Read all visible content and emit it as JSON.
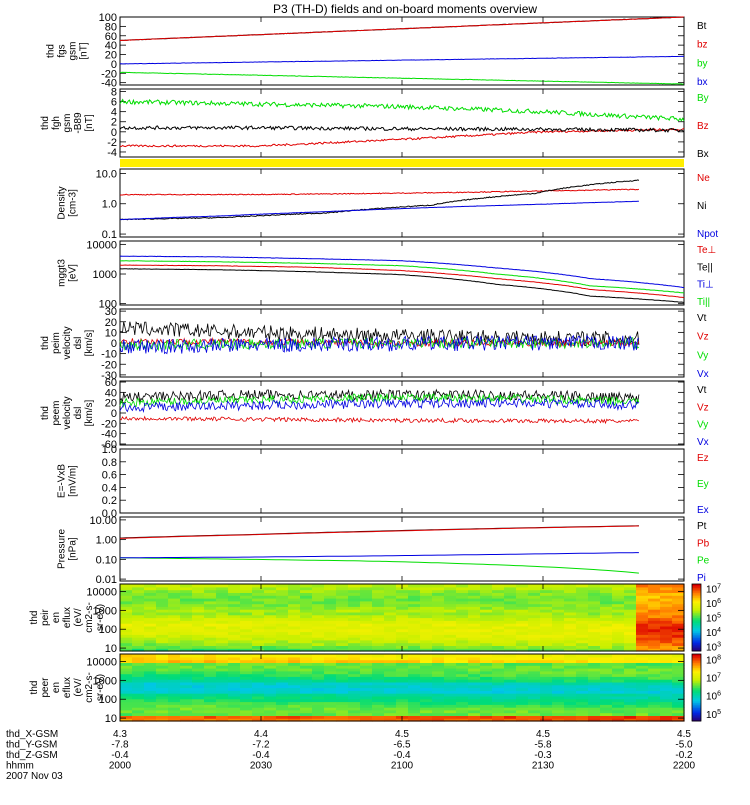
{
  "title": "P3 (TH-D) fields and on-board moments overview",
  "colors": {
    "black": "#000000",
    "red": "#e00000",
    "green": "#00dd00",
    "blue": "#0000e0",
    "yellow": "#ffee00"
  },
  "chart_data": [
    {
      "type": "line",
      "ylabel": [
        "thd",
        "fgs",
        "gsm",
        "[nT]"
      ],
      "yticks": [
        "100",
        "80",
        "60",
        "40",
        "20",
        "0",
        "-20",
        "-40"
      ],
      "yrange": [
        -45,
        100
      ],
      "ylog": false,
      "series": [
        {
          "name": "Bt",
          "color": "black",
          "values": [
            50,
            100
          ],
          "noise": 0.4
        },
        {
          "name": "bz",
          "color": "red",
          "values": [
            50,
            100
          ],
          "noise": 0.4
        },
        {
          "name": "by",
          "color": "green",
          "values": [
            -18,
            -43
          ],
          "noise": 0.4
        },
        {
          "name": "bx",
          "color": "blue",
          "values": [
            0,
            16
          ],
          "noise": 0.3
        }
      ]
    },
    {
      "type": "line",
      "ylabel": [
        "thd",
        "fgh",
        "gsm",
        "-B89",
        "[nT]"
      ],
      "yticks": [
        "8",
        "6",
        "4",
        "2",
        "0",
        "-2",
        "-4"
      ],
      "yrange": [
        -5,
        8.5
      ],
      "ylog": false,
      "series": [
        {
          "name": "By",
          "color": "green",
          "values": [
            6,
            5.5,
            5,
            4,
            2.5
          ],
          "noise": 0.45
        },
        {
          "name": "Bz",
          "color": "red",
          "values": [
            -2.8,
            -2.8,
            -1.5,
            0,
            0.5
          ],
          "noise": 0.2
        },
        {
          "name": "Bx",
          "color": "black",
          "values": [
            0.8,
            0.8,
            0.6,
            0.5,
            0.3
          ],
          "noise": 0.35
        }
      ]
    },
    {
      "type": "line",
      "ylabel": [
        "Density",
        "[cm-3]"
      ],
      "yticks": [
        "10.0",
        "1.0",
        "0.1"
      ],
      "ytickvals": [
        10,
        1,
        0.1
      ],
      "yrange": [
        0.08,
        14
      ],
      "ylog": true,
      "xend": 0.92,
      "series": [
        {
          "name": "Ne",
          "color": "red",
          "values": [
            2,
            2,
            2.1,
            2.3,
            2.6,
            3
          ],
          "noise": 0.03
        },
        {
          "name": "Ni",
          "color": "black",
          "values": [
            0.3,
            0.35,
            0.5,
            0.9,
            2.2,
            6
          ],
          "noise": 0.03
        },
        {
          "name": "Npot",
          "color": "blue",
          "values": [
            0.3,
            0.4,
            0.55,
            0.75,
            0.95,
            1.2
          ],
          "noise": 0.01
        }
      ]
    },
    {
      "type": "line",
      "ylabel": [
        "mggt3",
        "[eV]"
      ],
      "yticks": [
        "10000",
        "1000",
        "100"
      ],
      "ytickvals": [
        10000,
        1000,
        100
      ],
      "yrange": [
        90,
        13000
      ],
      "ylog": true,
      "series": [
        {
          "name": "Te⊥",
          "color": "red",
          "values": [
            2000,
            1900,
            1700,
            1300,
            700,
            300,
            160
          ],
          "noise": 0.01
        },
        {
          "name": "Te||",
          "color": "black",
          "values": [
            1500,
            1400,
            1200,
            950,
            450,
            180,
            110
          ],
          "noise": 0.01
        },
        {
          "name": "Ti⊥",
          "color": "blue",
          "values": [
            4000,
            3800,
            3300,
            2800,
            1600,
            700,
            350
          ],
          "noise": 0.01
        },
        {
          "name": "Ti||",
          "color": "green",
          "values": [
            2800,
            2600,
            2300,
            1900,
            1000,
            400,
            230
          ],
          "noise": 0.01
        }
      ]
    },
    {
      "type": "line",
      "ylabel": [
        "thd",
        "peim",
        "velocity",
        "dsl",
        "[km/s]"
      ],
      "yticks": [
        "30",
        "20",
        "10",
        "0",
        "-10",
        "-20",
        "-30"
      ],
      "yrange": [
        -32,
        32
      ],
      "ylog": false,
      "xend": 0.92,
      "series": [
        {
          "name": "Vt",
          "color": "black",
          "values": [
            14,
            10,
            7,
            5,
            4
          ],
          "noise": 7
        },
        {
          "name": "Vz",
          "color": "red",
          "values": [
            2,
            1,
            0,
            0,
            0
          ],
          "noise": 3
        },
        {
          "name": "Vy",
          "color": "green",
          "values": [
            -2,
            -1,
            0,
            0,
            0
          ],
          "noise": 5
        },
        {
          "name": "Vx",
          "color": "blue",
          "values": [
            -4,
            -2,
            -1,
            0,
            0
          ],
          "noise": 7
        }
      ]
    },
    {
      "type": "line",
      "ylabel": [
        "thd",
        "peem",
        "velocity",
        "dsl",
        "[km/s]"
      ],
      "yticks": [
        "60",
        "40",
        "20",
        "0",
        "-20",
        "-40",
        "-60"
      ],
      "yrange": [
        -62,
        62
      ],
      "ylog": false,
      "xend": 0.92,
      "series": [
        {
          "name": "Vt",
          "color": "black",
          "values": [
            30,
            35,
            35,
            35,
            30
          ],
          "noise": 10
        },
        {
          "name": "Vz",
          "color": "red",
          "values": [
            -10,
            -12,
            -14,
            -15,
            -16
          ],
          "noise": 4
        },
        {
          "name": "Vy",
          "color": "green",
          "values": [
            20,
            25,
            30,
            28,
            22
          ],
          "noise": 8
        },
        {
          "name": "Vx",
          "color": "blue",
          "values": [
            10,
            15,
            18,
            20,
            15
          ],
          "noise": 9
        }
      ]
    },
    {
      "type": "line",
      "ylabel": [
        "E=-VxB",
        "[mV/m]"
      ],
      "yticks": [
        "1.0",
        "0.8",
        "0.6",
        "0.4",
        "0.2",
        "0.0"
      ],
      "yrange": [
        0,
        1
      ],
      "ylog": false,
      "series": [
        {
          "name": "Ez",
          "color": "red",
          "values": [],
          "noise": 0
        },
        {
          "name": "Ey",
          "color": "green",
          "values": [],
          "noise": 0
        },
        {
          "name": "Ex",
          "color": "blue",
          "values": [],
          "noise": 0
        }
      ]
    },
    {
      "type": "line",
      "ylabel": [
        "Pressure",
        "[nPa]"
      ],
      "yticks": [
        "10.00",
        "1.00",
        "0.10",
        "0.01"
      ],
      "ytickvals": [
        10,
        1,
        0.1,
        0.01
      ],
      "yrange": [
        0.008,
        14
      ],
      "ylog": true,
      "xend": 0.92,
      "series": [
        {
          "name": "Pt",
          "color": "black",
          "values": [
            1.2,
            1.8,
            2.7,
            3.8,
            5
          ],
          "noise": 0
        },
        {
          "name": "Pb",
          "color": "red",
          "values": [
            1.15,
            1.75,
            2.6,
            3.7,
            4.9
          ],
          "noise": 0
        },
        {
          "name": "Pe",
          "color": "green",
          "values": [
            0.12,
            0.1,
            0.08,
            0.05,
            0.02
          ],
          "noise": 0
        },
        {
          "name": "Pi",
          "color": "blue",
          "values": [
            0.12,
            0.13,
            0.15,
            0.18,
            0.22
          ],
          "noise": 0
        }
      ]
    },
    {
      "type": "heatmap",
      "ylabel": [
        "thd",
        "peir",
        "en",
        "eflux",
        "(eV/",
        "cm2-s-",
        "sr-eV)"
      ],
      "yticks": [
        "10000",
        "1000",
        "100",
        "10"
      ],
      "ytickvals": [
        10000,
        1000,
        100,
        10
      ],
      "yrange": [
        7,
        25000
      ],
      "ylog": true,
      "colorbar": {
        "labels": [
          "10^7",
          "10^6",
          "10^5",
          "10^4",
          "10^3"
        ],
        "range": [
          2.7,
          7.3
        ]
      },
      "variant": "ion"
    },
    {
      "type": "heatmap",
      "ylabel": [
        "thd",
        "peer",
        "en",
        "eflux",
        "(eV/",
        "cm2-s-",
        "sr-eV)"
      ],
      "yticks": [
        "10000",
        "1000",
        "100",
        "10"
      ],
      "ytickvals": [
        10000,
        1000,
        100,
        10
      ],
      "yrange": [
        7,
        25000
      ],
      "ylog": true,
      "colorbar": {
        "labels": [
          "10^8",
          "10^7",
          "10^6",
          "10^5"
        ],
        "range": [
          4.6,
          8.3
        ]
      },
      "variant": "electron"
    }
  ],
  "xaxis": {
    "rows": [
      {
        "label": "thd_X-GSM",
        "values": [
          "4.3",
          "4.4",
          "4.5",
          "4.5",
          "4.5"
        ]
      },
      {
        "label": "thd_Y-GSM",
        "values": [
          "-7.8",
          "-7.2",
          "-6.5",
          "-5.8",
          "-5.0"
        ]
      },
      {
        "label": "thd_Z-GSM",
        "values": [
          "-0.4",
          "-0.4",
          "-0.4",
          "-0.3",
          "-0.2"
        ]
      },
      {
        "label": "hhmm",
        "values": [
          "2000",
          "2030",
          "2100",
          "2130",
          "2200"
        ]
      }
    ],
    "date": "2007 Nov 03"
  }
}
